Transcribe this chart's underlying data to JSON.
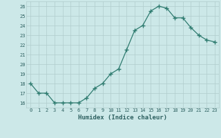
{
  "xlabel": "Humidex (Indice chaleur)",
  "x_values": [
    0,
    1,
    2,
    3,
    4,
    5,
    6,
    7,
    8,
    9,
    10,
    11,
    12,
    13,
    14,
    15,
    16,
    17,
    18,
    19,
    20,
    21,
    22,
    23
  ],
  "y_values": [
    18,
    17,
    17,
    16,
    16,
    16,
    16,
    16.5,
    17.5,
    18,
    19,
    19.5,
    21.5,
    23.5,
    24,
    25.5,
    26,
    25.8,
    24.8,
    24.8,
    23.8,
    23,
    22.5,
    22.3
  ],
  "ylim": [
    15.5,
    26.5
  ],
  "xlim": [
    -0.5,
    23.5
  ],
  "yticks": [
    16,
    17,
    18,
    19,
    20,
    21,
    22,
    23,
    24,
    25,
    26
  ],
  "xticks": [
    0,
    1,
    2,
    3,
    4,
    5,
    6,
    7,
    8,
    9,
    10,
    11,
    12,
    13,
    14,
    15,
    16,
    17,
    18,
    19,
    20,
    21,
    22,
    23
  ],
  "line_color": "#2d7a6e",
  "marker_color": "#2d7a6e",
  "bg_color": "#cce8e8",
  "grid_color": "#b0cccc",
  "tick_label_color": "#2d6060",
  "xlabel_color": "#2d6060"
}
